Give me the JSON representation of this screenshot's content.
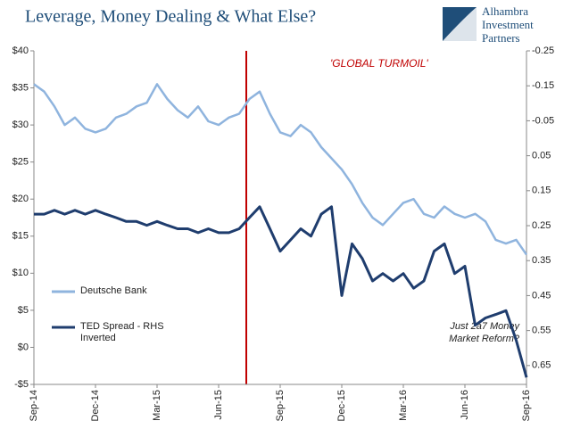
{
  "chart_data": {
    "type": "line",
    "title": "Leverage, Money Dealing & What Else?",
    "logo": [
      "Alhambra",
      "Investment",
      "Partners"
    ],
    "annotations": {
      "event": "'GLOBAL TURMOIL'",
      "note": [
        "Just 2a7 Money",
        "Market Reform?"
      ]
    },
    "categories": [
      "Sep-14",
      null,
      null,
      null,
      null,
      null,
      "Dec-14",
      null,
      null,
      null,
      null,
      null,
      "Mar-15",
      null,
      null,
      null,
      null,
      null,
      "Jun-15",
      null,
      null,
      null,
      null,
      null,
      "Sep-15",
      null,
      null,
      null,
      null,
      null,
      "Dec-15",
      null,
      null,
      null,
      null,
      null,
      "Mar-16",
      null,
      null,
      null,
      null,
      null,
      "Jun-16",
      null,
      null,
      null,
      null,
      null,
      "Sep-16"
    ],
    "series": [
      {
        "name": "Deutsche Bank",
        "color": "#8fb4de",
        "values": [
          35.5,
          34.5,
          32.5,
          30,
          31,
          29.5,
          29,
          29.5,
          31,
          31.5,
          32.5,
          33,
          35.5,
          33.5,
          32,
          31,
          32.5,
          30.5,
          30,
          31,
          31.5,
          33.5,
          34.5,
          31.5,
          29,
          28.5,
          30,
          29,
          27,
          25.5,
          24,
          22,
          19.5,
          17.5,
          16.5,
          18,
          19.5,
          20,
          18,
          17.5,
          19,
          18,
          17.5,
          18,
          17,
          14.5,
          14,
          14.5,
          12.5
        ]
      },
      {
        "name": "TED Spread - RHS Inverted",
        "color": "#1f3d6e",
        "axis": "y2",
        "values": [
          0.217,
          0.217,
          0.206,
          0.217,
          0.206,
          0.217,
          0.206,
          0.217,
          0.227,
          0.238,
          0.238,
          0.249,
          0.238,
          0.249,
          0.259,
          0.259,
          0.27,
          0.259,
          0.27,
          0.27,
          0.259,
          0.227,
          0.196,
          0.259,
          0.323,
          0.291,
          0.259,
          0.28,
          0.217,
          0.196,
          0.45,
          0.302,
          0.344,
          0.408,
          0.387,
          0.408,
          0.387,
          0.429,
          0.408,
          0.323,
          0.302,
          0.387,
          0.366,
          0.535,
          0.514,
          0.504,
          0.493,
          0.578,
          0.684
        ]
      }
    ],
    "ylim": [
      -5,
      40
    ],
    "yticks": [
      {
        "value": -5,
        "label": "-$5"
      },
      {
        "value": 0,
        "label": "$0"
      },
      {
        "value": 5,
        "label": "$5"
      },
      {
        "value": 10,
        "label": "$10"
      },
      {
        "value": 15,
        "label": "$15"
      },
      {
        "value": 20,
        "label": "$20"
      },
      {
        "value": 25,
        "label": "$25"
      },
      {
        "value": 30,
        "label": "$30"
      },
      {
        "value": 35,
        "label": "$35"
      },
      {
        "value": 40,
        "label": "$40"
      }
    ],
    "y2lim": [
      0.704,
      -0.25
    ],
    "y2ticks": [
      -0.25,
      -0.15,
      -0.05,
      0.05,
      0.15,
      0.25,
      0.35,
      0.45,
      0.55,
      0.65
    ],
    "y2_inverted": true,
    "event_color": "#c00000"
  }
}
